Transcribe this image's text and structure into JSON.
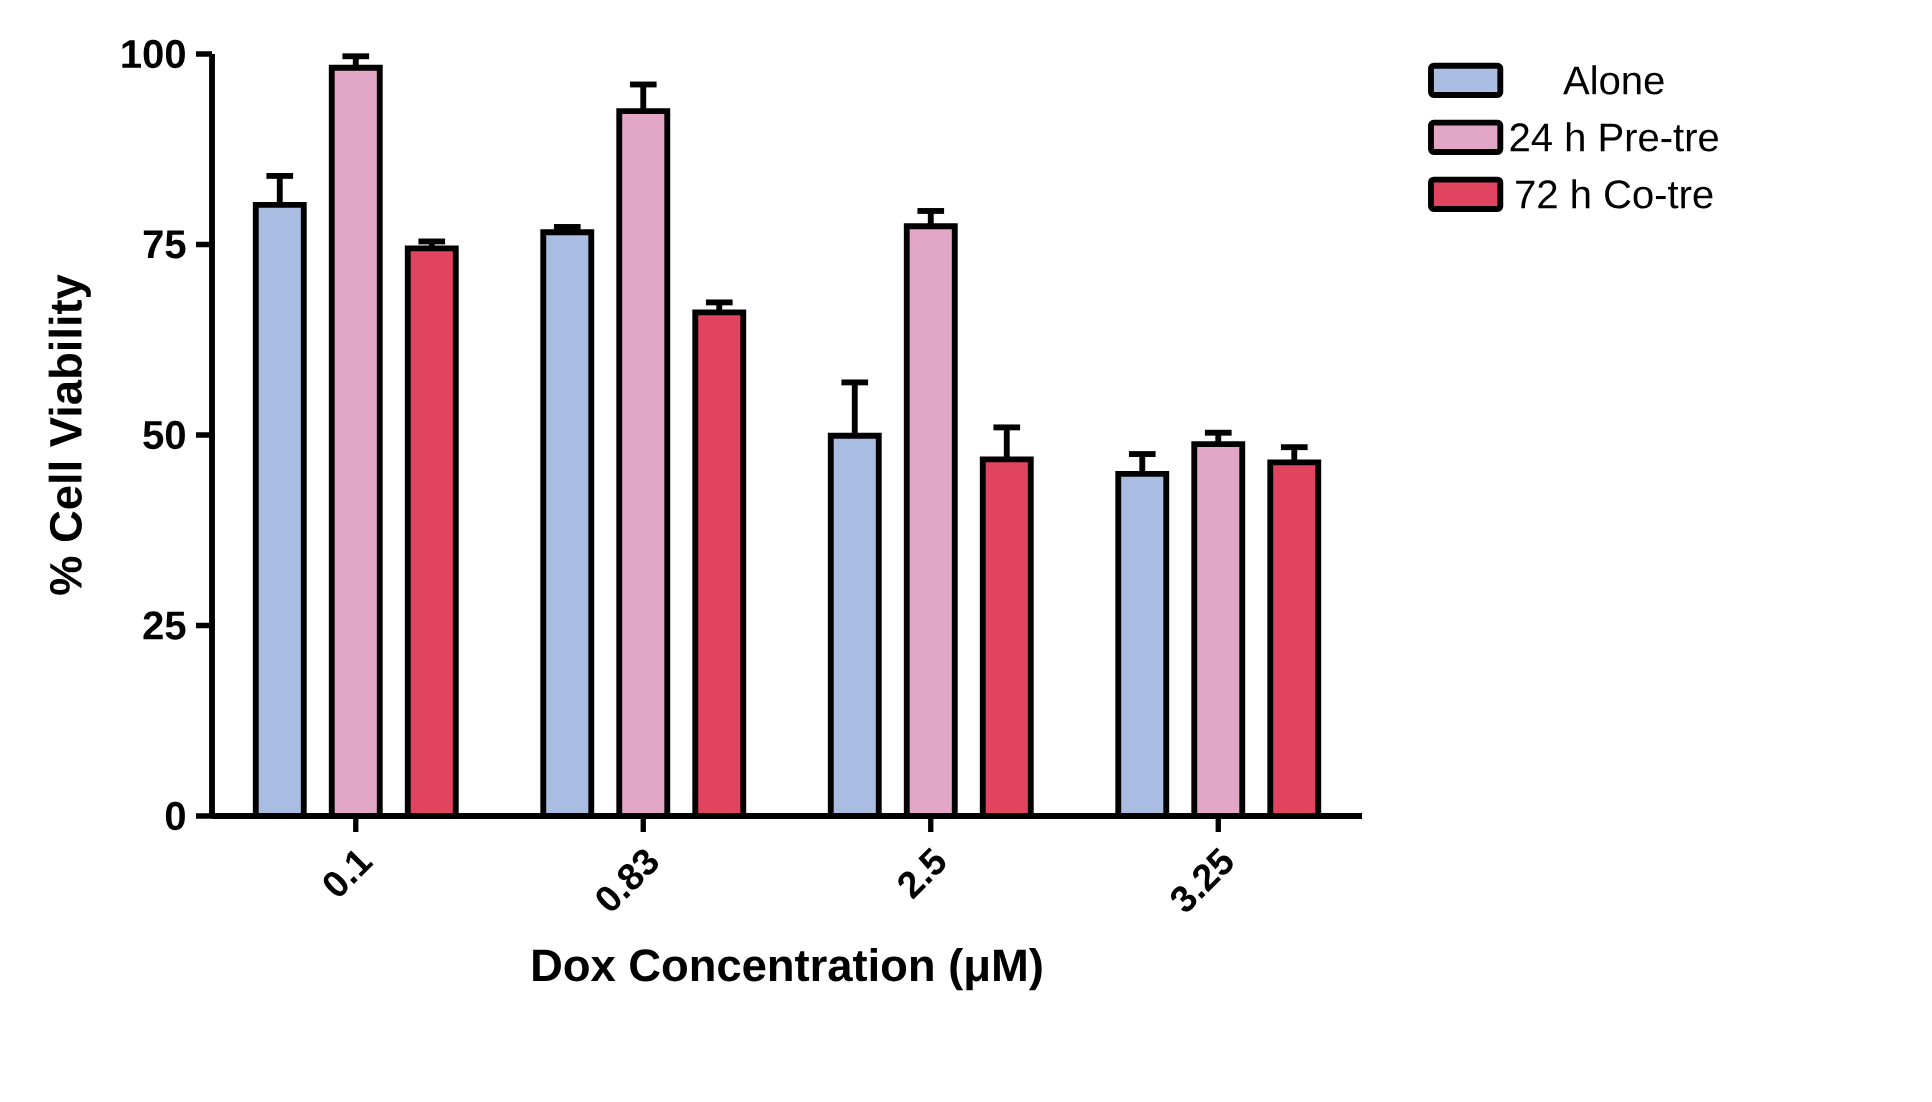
{
  "chart_data": {
    "type": "bar",
    "xlabel": "Dox Concentration (μM)",
    "ylabel": "% Cell Viability",
    "categories": [
      "0.1",
      "0.83",
      "2.5",
      "3.25"
    ],
    "series": [
      {
        "name": "Alone",
        "color": "#a9bde3",
        "values": [
          80.2,
          76.6,
          49.9,
          44.9
        ],
        "errors": [
          3.8,
          0.7,
          7.0,
          2.6
        ]
      },
      {
        "name": "24 h Pre-tre",
        "color": "#e2a6c6",
        "values": [
          98.2,
          92.5,
          77.4,
          48.8
        ],
        "errors": [
          1.5,
          3.5,
          2.0,
          1.5
        ]
      },
      {
        "name": "72 h Co-tre",
        "color": "#e0445f",
        "values": [
          74.5,
          66.1,
          46.8,
          46.4
        ],
        "errors": [
          0.9,
          1.3,
          4.2,
          2.0
        ]
      }
    ],
    "ylim": [
      0,
      100
    ],
    "yticks": [
      0,
      25,
      50,
      75,
      100
    ],
    "grid": false,
    "legend": "right"
  }
}
